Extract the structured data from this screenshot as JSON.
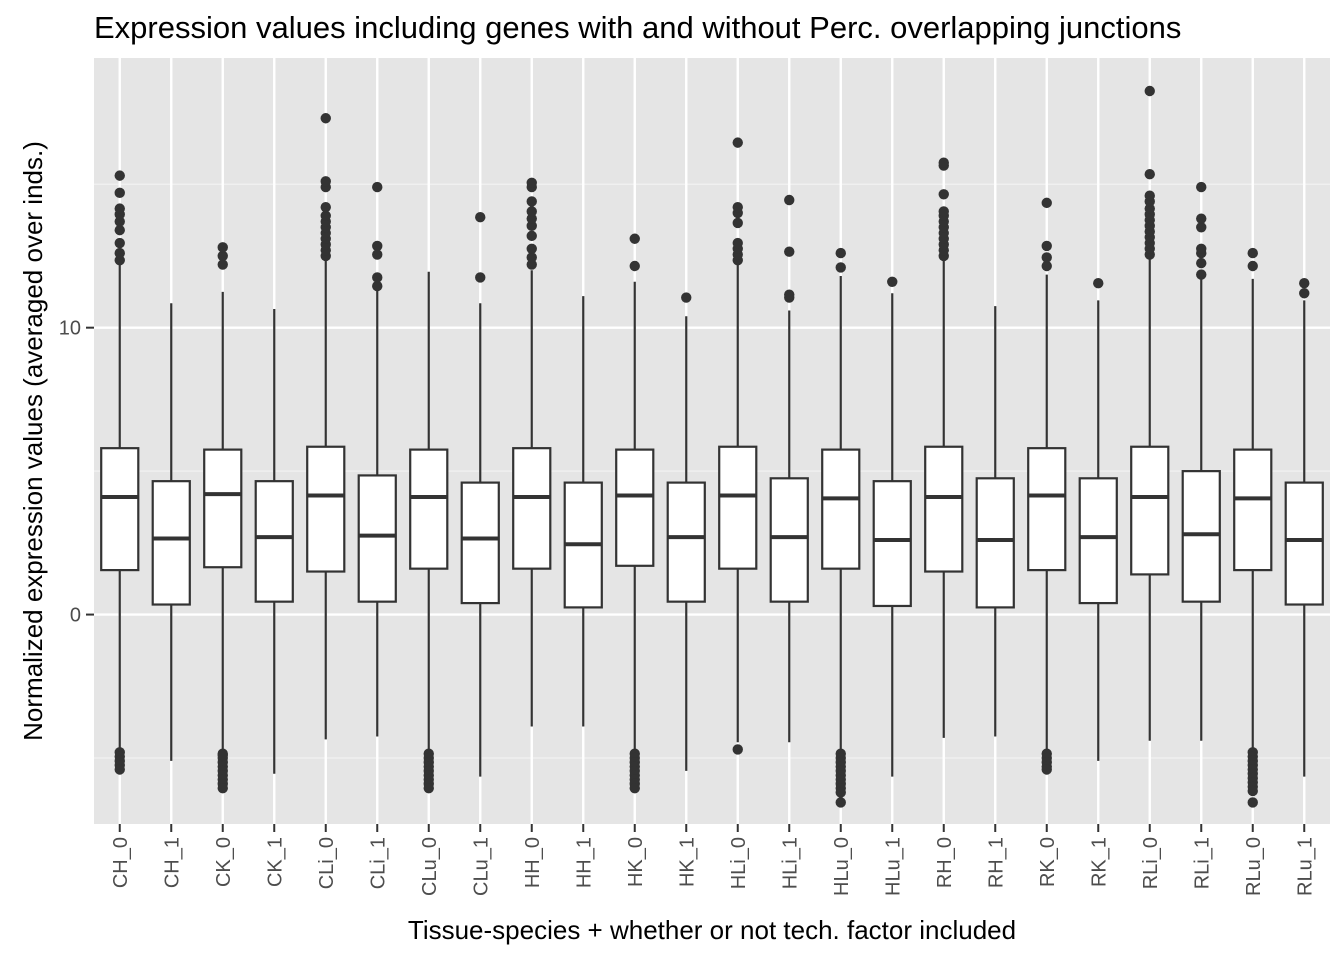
{
  "chart_data": {
    "type": "boxplot",
    "title": "Expression values including genes with and without Perc. overlapping junctions",
    "xlabel": "Tissue-species + whether or not tech. factor included",
    "ylabel": "Normalized expression values (averaged over inds.)",
    "ylim": [
      -7.3,
      19.4
    ],
    "y_ticks": [
      0,
      10
    ],
    "y_tick_labels": [
      "0",
      "10"
    ],
    "grid": true,
    "panel_background": "#e5e5e5",
    "box_fill": "#ffffff",
    "line_color": "#333333",
    "categories": [
      "CH_0",
      "CH_1",
      "CK_0",
      "CK_1",
      "CLi_0",
      "CLi_1",
      "CLu_0",
      "CLu_1",
      "HH_0",
      "HH_1",
      "HK_0",
      "HK_1",
      "HLi_0",
      "HLi_1",
      "HLu_0",
      "HLu_1",
      "RH_0",
      "RH_1",
      "RK_0",
      "RK_1",
      "RLi_0",
      "RLi_1",
      "RLu_0",
      "RLu_1"
    ],
    "boxes": [
      {
        "low": -5.1,
        "q1": 1.55,
        "median": 4.1,
        "q3": 5.8,
        "high": 12.3,
        "outliers": [
          12.35,
          12.6,
          12.95,
          13.4,
          13.7,
          13.95,
          14.15,
          14.7,
          15.3,
          -4.8,
          -4.95,
          -5.1,
          -5.25,
          -5.4
        ]
      },
      {
        "low": -5.1,
        "q1": 0.35,
        "median": 2.65,
        "q3": 4.65,
        "high": 10.85,
        "outliers": []
      },
      {
        "low": -4.8,
        "q1": 1.65,
        "median": 4.2,
        "q3": 5.75,
        "high": 11.25,
        "outliers": [
          12.2,
          12.5,
          12.8,
          -4.85,
          -5.0,
          -5.15,
          -5.3,
          -5.45,
          -5.6,
          -5.75,
          -5.9,
          -6.05,
          -4.9
        ]
      },
      {
        "low": -5.55,
        "q1": 0.45,
        "median": 2.7,
        "q3": 4.65,
        "high": 10.65,
        "outliers": []
      },
      {
        "low": -4.35,
        "q1": 1.5,
        "median": 4.15,
        "q3": 5.85,
        "high": 12.35,
        "outliers": [
          12.5,
          12.7,
          12.9,
          13.1,
          13.3,
          13.5,
          13.7,
          13.9,
          14.2,
          14.9,
          15.1,
          17.3
        ]
      },
      {
        "low": -4.25,
        "q1": 0.45,
        "median": 2.75,
        "q3": 4.85,
        "high": 11.35,
        "outliers": [
          11.45,
          11.75,
          12.55,
          12.85,
          14.9
        ]
      },
      {
        "low": -4.8,
        "q1": 1.6,
        "median": 4.1,
        "q3": 5.75,
        "high": 11.95,
        "outliers": [
          -4.85,
          -5.0,
          -5.15,
          -5.3,
          -5.45,
          -5.6,
          -5.75,
          -5.9,
          -6.05
        ]
      },
      {
        "low": -5.65,
        "q1": 0.4,
        "median": 2.65,
        "q3": 4.6,
        "high": 10.85,
        "outliers": [
          11.75,
          13.85
        ]
      },
      {
        "low": -3.9,
        "q1": 1.6,
        "median": 4.1,
        "q3": 5.8,
        "high": 12.0,
        "outliers": [
          12.2,
          12.45,
          12.75,
          13.2,
          13.55,
          13.8,
          14.05,
          14.4,
          14.9,
          15.05
        ]
      },
      {
        "low": -3.9,
        "q1": 0.25,
        "median": 2.45,
        "q3": 4.6,
        "high": 11.1,
        "outliers": []
      },
      {
        "low": -4.8,
        "q1": 1.7,
        "median": 4.15,
        "q3": 5.75,
        "high": 11.6,
        "outliers": [
          12.15,
          13.1,
          -4.85,
          -5.0,
          -5.15,
          -5.3,
          -5.45,
          -5.6,
          -5.75,
          -5.9,
          -6.05
        ]
      },
      {
        "low": -5.45,
        "q1": 0.45,
        "median": 2.7,
        "q3": 4.6,
        "high": 10.4,
        "outliers": [
          11.05
        ]
      },
      {
        "low": -4.45,
        "q1": 1.6,
        "median": 4.15,
        "q3": 5.85,
        "high": 12.25,
        "outliers": [
          12.35,
          12.55,
          12.75,
          12.95,
          13.65,
          14.0,
          14.2,
          16.45,
          -4.7
        ]
      },
      {
        "low": -4.45,
        "q1": 0.45,
        "median": 2.7,
        "q3": 4.75,
        "high": 10.6,
        "outliers": [
          11.05,
          11.15,
          12.65,
          14.45
        ]
      },
      {
        "low": -4.8,
        "q1": 1.6,
        "median": 4.05,
        "q3": 5.75,
        "high": 11.8,
        "outliers": [
          12.1,
          12.6,
          -4.85,
          -5.0,
          -5.15,
          -5.3,
          -5.45,
          -5.6,
          -5.75,
          -5.9,
          -6.05,
          -6.2,
          -6.55
        ]
      },
      {
        "low": -5.65,
        "q1": 0.3,
        "median": 2.6,
        "q3": 4.65,
        "high": 11.2,
        "outliers": [
          11.6
        ]
      },
      {
        "low": -4.3,
        "q1": 1.5,
        "median": 4.1,
        "q3": 5.85,
        "high": 12.35,
        "outliers": [
          12.5,
          12.7,
          12.9,
          13.1,
          13.3,
          13.5,
          13.7,
          13.9,
          14.05,
          14.65,
          15.65,
          15.75
        ]
      },
      {
        "low": -4.25,
        "q1": 0.25,
        "median": 2.6,
        "q3": 4.75,
        "high": 10.75,
        "outliers": []
      },
      {
        "low": -4.8,
        "q1": 1.55,
        "median": 4.15,
        "q3": 5.8,
        "high": 11.85,
        "outliers": [
          12.15,
          12.45,
          12.85,
          14.35,
          -4.85,
          -5.0,
          -5.15,
          -5.3,
          -5.4
        ]
      },
      {
        "low": -5.1,
        "q1": 0.4,
        "median": 2.7,
        "q3": 4.75,
        "high": 10.95,
        "outliers": [
          11.55
        ]
      },
      {
        "low": -4.4,
        "q1": 1.4,
        "median": 4.1,
        "q3": 5.85,
        "high": 12.4,
        "outliers": [
          12.55,
          12.75,
          12.95,
          13.15,
          13.35,
          13.55,
          13.75,
          13.95,
          14.15,
          14.4,
          14.6,
          15.35,
          18.25
        ]
      },
      {
        "low": -4.4,
        "q1": 0.45,
        "median": 2.8,
        "q3": 5.0,
        "high": 11.75,
        "outliers": [
          11.85,
          12.25,
          12.6,
          12.75,
          13.5,
          13.8,
          14.9
        ]
      },
      {
        "low": -4.75,
        "q1": 1.55,
        "median": 4.05,
        "q3": 5.75,
        "high": 11.7,
        "outliers": [
          12.15,
          12.6,
          -4.8,
          -4.95,
          -5.1,
          -5.25,
          -5.4,
          -5.55,
          -5.7,
          -5.85,
          -6.0,
          -6.15,
          -6.55
        ]
      },
      {
        "low": -5.65,
        "q1": 0.35,
        "median": 2.6,
        "q3": 4.6,
        "high": 10.95,
        "outliers": [
          11.2,
          11.55
        ]
      }
    ]
  }
}
